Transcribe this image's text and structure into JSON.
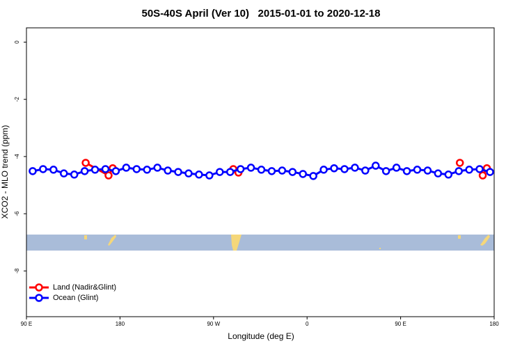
{
  "chart_data": {
    "type": "line",
    "title": "50S-40S April (Ver 10)   2015-01-01 to 2020-12-18",
    "x_label": "Longitude (deg E)",
    "y_label": "XCO2 - MLO trend (ppm)",
    "xlim": [
      90,
      540
    ],
    "ylim": [
      -9.6,
      0.5
    ],
    "xticks": [
      {
        "value": 90,
        "label": "90 E"
      },
      180,
      {
        "value": 270,
        "label": "90 W"
      },
      {
        "value": 360,
        "label": "0"
      },
      {
        "value": 450,
        "label": "90 E"
      },
      {
        "value": 540,
        "label": "180"
      }
    ],
    "yticks": [
      0,
      -2,
      -4,
      -6,
      -8
    ],
    "legend": "lower left",
    "series": [
      {
        "name": "Land (Nadir&Glint)",
        "color": "#ff0000",
        "x": [
          147,
          169,
          173,
          null,
          289,
          294,
          null,
          507,
          null,
          529,
          533
        ],
        "values": [
          -4.22,
          -4.66,
          -4.41,
          null,
          -4.44,
          -4.56,
          null,
          -4.22,
          null,
          -4.66,
          -4.41
        ]
      },
      {
        "name": "Ocean (Glint)",
        "color": "#0000ff",
        "x": [
          96,
          106,
          116,
          126,
          136,
          146,
          156,
          166,
          176,
          186,
          196,
          206,
          216,
          226,
          236,
          246,
          256,
          266,
          276,
          286,
          296,
          306,
          316,
          326,
          336,
          346,
          356,
          366,
          376,
          386,
          396,
          406,
          416,
          426,
          436,
          446,
          456,
          466,
          476,
          486,
          496,
          506,
          516,
          526,
          536
        ],
        "values": [
          -4.51,
          -4.44,
          -4.46,
          -4.59,
          -4.63,
          -4.51,
          -4.46,
          -4.44,
          -4.51,
          -4.39,
          -4.44,
          -4.46,
          -4.39,
          -4.49,
          -4.54,
          -4.59,
          -4.63,
          -4.66,
          -4.54,
          -4.54,
          -4.44,
          -4.39,
          -4.46,
          -4.51,
          -4.49,
          -4.54,
          -4.61,
          -4.68,
          -4.46,
          -4.41,
          -4.44,
          -4.39,
          -4.49,
          -4.32,
          -4.51,
          -4.39,
          -4.51,
          -4.46,
          -4.49,
          -4.59,
          -4.63,
          -4.51,
          -4.46,
          -4.44,
          -4.54
        ]
      }
    ]
  }
}
